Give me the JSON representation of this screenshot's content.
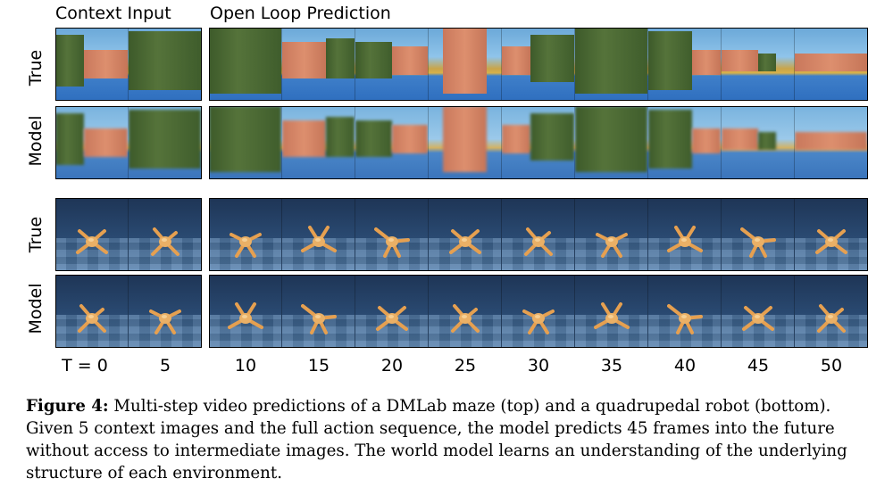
{
  "headers": {
    "context": "Context Input",
    "prediction": "Open Loop Prediction"
  },
  "row_labels": {
    "true": "True",
    "model": "Model"
  },
  "time_labels": [
    "T = 0",
    "5",
    "10",
    "15",
    "20",
    "25",
    "30",
    "35",
    "40",
    "45",
    "50"
  ],
  "caption": {
    "label": "Figure 4:",
    "text": "Multi-step video predictions of a DMLab maze (top) and a quadrupedal robot (bottom). Given 5 context images and the full action sequence, the model predicts 45 frames into the future without access to intermediate images. The world model learns an understanding of the underlying structure of each environment."
  },
  "colors": {
    "sky": "#8fc4ea",
    "water": "#2f6fbf",
    "robot_body": "#e6a050",
    "robot_bg": "#2a4a72"
  }
}
